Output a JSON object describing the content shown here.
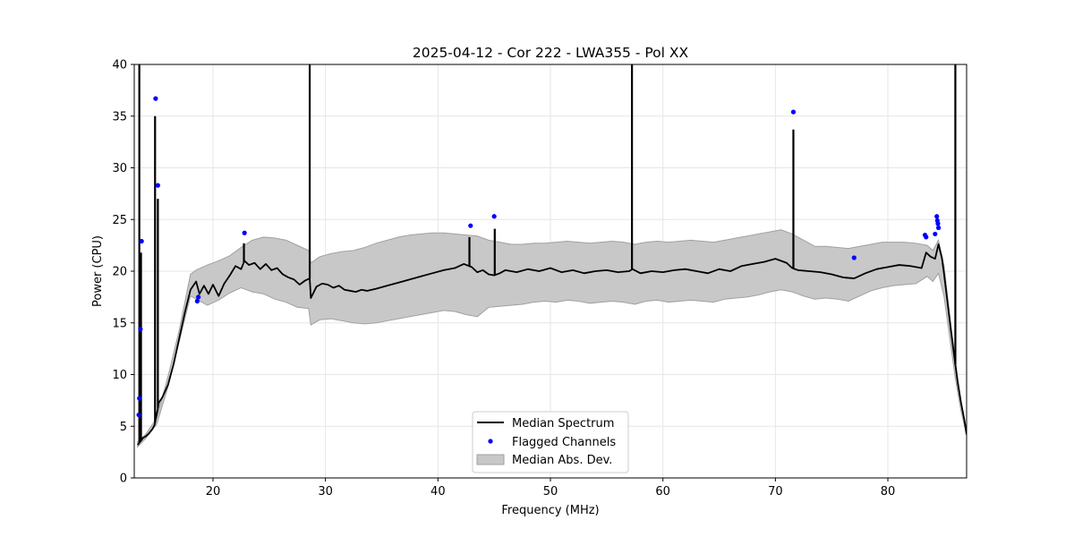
{
  "chart_data": {
    "type": "line",
    "title": "2025-04-12 - Cor 222 - LWA355 - Pol XX",
    "xlabel": "Frequency (MHz)",
    "ylabel": "Power (CPU)",
    "xlim": [
      13.0,
      87.0
    ],
    "ylim": [
      0,
      40
    ],
    "xticks": [
      20,
      30,
      40,
      50,
      60,
      70,
      80
    ],
    "yticks": [
      0,
      5,
      10,
      15,
      20,
      25,
      30,
      35,
      40
    ],
    "grid": true,
    "legend_position": "lower-center",
    "colors": {
      "median": "#000000",
      "flagged": "#0000ff",
      "mad_fill": "#c8c8c8",
      "mad_edge": "#a0a0a0",
      "grid": "#e6e6e6"
    },
    "series": [
      {
        "name": "Median Spectrum",
        "kind": "line",
        "x": [
          13.3,
          13.6,
          13.8,
          14.0,
          14.3,
          14.6,
          14.8,
          15.0,
          15.2,
          15.5,
          16.0,
          16.5,
          17.0,
          17.5,
          18.0,
          18.5,
          18.8,
          19.2,
          19.6,
          20.0,
          20.5,
          21.0,
          21.5,
          22.0,
          22.5,
          22.8,
          23.2,
          23.7,
          24.2,
          24.7,
          25.2,
          25.7,
          26.2,
          26.7,
          27.2,
          27.7,
          28.2,
          28.6,
          28.7,
          29.2,
          29.7,
          30.2,
          30.7,
          31.2,
          31.7,
          32.2,
          32.7,
          33.2,
          33.7,
          34.5,
          35.5,
          36.5,
          37.5,
          38.5,
          39.5,
          40.5,
          41.5,
          42.3,
          43.0,
          43.5,
          44.0,
          44.5,
          45.0,
          45.5,
          46.0,
          47.0,
          48.0,
          49.0,
          50.0,
          51.0,
          52.0,
          53.0,
          54.0,
          55.0,
          56.0,
          57.0,
          57.3,
          58.0,
          59.0,
          60.0,
          61.0,
          62.0,
          63.0,
          64.0,
          65.0,
          66.0,
          67.0,
          68.0,
          69.0,
          70.0,
          71.0,
          71.5,
          72.0,
          73.0,
          74.0,
          75.0,
          76.0,
          77.0,
          78.0,
          79.0,
          80.0,
          81.0,
          82.0,
          83.0,
          83.4,
          83.8,
          84.2,
          84.5,
          84.8,
          85.0,
          85.3,
          85.6,
          85.9,
          86.2,
          86.5,
          86.8,
          87.0
        ],
        "y": [
          3.2,
          3.6,
          3.9,
          4.0,
          4.3,
          4.7,
          5.1,
          6.2,
          7.3,
          7.8,
          9.0,
          11.0,
          13.5,
          16.0,
          18.2,
          19.0,
          17.8,
          18.6,
          17.8,
          18.7,
          17.6,
          18.8,
          19.6,
          20.5,
          20.2,
          21.0,
          20.6,
          20.8,
          20.2,
          20.7,
          20.1,
          20.3,
          19.7,
          19.4,
          19.2,
          18.7,
          19.1,
          19.3,
          17.4,
          18.5,
          18.8,
          18.7,
          18.4,
          18.6,
          18.2,
          18.1,
          18.0,
          18.2,
          18.1,
          18.3,
          18.6,
          18.9,
          19.2,
          19.5,
          19.8,
          20.1,
          20.3,
          20.7,
          20.4,
          19.9,
          20.1,
          19.7,
          19.6,
          19.8,
          20.1,
          19.9,
          20.2,
          20.0,
          20.3,
          19.9,
          20.1,
          19.8,
          20.0,
          20.1,
          19.9,
          20.0,
          20.2,
          19.8,
          20.0,
          19.9,
          20.1,
          20.2,
          20.0,
          19.8,
          20.2,
          20.0,
          20.5,
          20.7,
          20.9,
          21.2,
          20.8,
          20.3,
          20.1,
          20.0,
          19.9,
          19.7,
          19.4,
          19.3,
          19.8,
          20.2,
          20.4,
          20.6,
          20.5,
          20.3,
          21.8,
          21.4,
          21.2,
          22.6,
          21.3,
          19.7,
          17.0,
          14.3,
          11.8,
          9.3,
          7.3,
          5.6,
          4.2
        ]
      },
      {
        "name": "Median Abs. Dev.",
        "kind": "band",
        "x": [
          13.3,
          14.0,
          15.0,
          16.0,
          17.0,
          18.0,
          18.5,
          19.5,
          20.5,
          21.5,
          22.5,
          23.5,
          24.5,
          25.5,
          26.5,
          27.5,
          28.5,
          28.7,
          29.5,
          30.5,
          31.5,
          32.5,
          33.5,
          34.5,
          35.5,
          36.5,
          37.5,
          38.5,
          39.5,
          40.5,
          41.5,
          42.5,
          43.5,
          44.5,
          45.5,
          46.5,
          47.5,
          48.5,
          49.5,
          50.5,
          51.5,
          52.5,
          53.5,
          54.5,
          55.5,
          56.5,
          57.5,
          58.5,
          59.5,
          60.5,
          61.5,
          62.5,
          63.5,
          64.5,
          65.5,
          66.5,
          67.5,
          68.5,
          69.5,
          70.5,
          71.5,
          72.5,
          73.5,
          74.5,
          75.5,
          76.5,
          77.5,
          78.5,
          79.5,
          80.5,
          81.5,
          82.5,
          83.5,
          84.0,
          84.5,
          85.0,
          85.5,
          86.0,
          86.5,
          87.0
        ],
        "lower": [
          3.0,
          3.8,
          5.2,
          8.8,
          13.2,
          17.6,
          17.3,
          16.7,
          17.2,
          17.9,
          18.4,
          18.0,
          17.8,
          17.3,
          17.0,
          16.5,
          16.4,
          14.8,
          15.3,
          15.4,
          15.2,
          15.0,
          14.9,
          15.0,
          15.2,
          15.4,
          15.6,
          15.8,
          16.0,
          16.2,
          16.1,
          15.8,
          15.6,
          16.5,
          16.6,
          16.7,
          16.8,
          17.0,
          17.1,
          17.0,
          17.2,
          17.1,
          16.9,
          17.0,
          17.1,
          17.0,
          16.8,
          17.1,
          17.2,
          17.0,
          17.1,
          17.2,
          17.1,
          17.0,
          17.3,
          17.4,
          17.5,
          17.7,
          18.0,
          18.2,
          18.0,
          17.6,
          17.3,
          17.4,
          17.3,
          17.1,
          17.6,
          18.1,
          18.4,
          18.6,
          18.7,
          18.8,
          19.5,
          19.0,
          19.8,
          17.5,
          13.6,
          9.6,
          6.5,
          4.1
        ],
        "upper": [
          3.5,
          4.2,
          5.8,
          9.8,
          14.3,
          19.7,
          20.1,
          20.6,
          21.0,
          21.5,
          22.3,
          23.0,
          23.3,
          23.2,
          23.0,
          22.5,
          22.0,
          20.8,
          21.4,
          21.7,
          21.9,
          22.0,
          22.3,
          22.7,
          23.0,
          23.3,
          23.5,
          23.6,
          23.7,
          23.7,
          23.6,
          23.5,
          23.4,
          23.0,
          22.8,
          22.6,
          22.6,
          22.7,
          22.7,
          22.8,
          22.9,
          22.8,
          22.7,
          22.8,
          22.9,
          22.8,
          22.6,
          22.8,
          22.9,
          22.8,
          22.9,
          23.0,
          22.9,
          22.8,
          23.0,
          23.2,
          23.4,
          23.6,
          23.8,
          24.0,
          23.6,
          23.0,
          22.4,
          22.4,
          22.3,
          22.2,
          22.4,
          22.6,
          22.8,
          22.8,
          22.8,
          22.7,
          22.5,
          22.0,
          23.0,
          20.5,
          15.8,
          11.3,
          7.4,
          4.4
        ]
      },
      {
        "name": "Flagged Channels",
        "kind": "scatter",
        "x": [
          13.4,
          13.45,
          13.55,
          13.65,
          14.9,
          15.1,
          18.6,
          18.7,
          22.8,
          42.9,
          45.0,
          71.6,
          77.0,
          83.3,
          83.4,
          84.2,
          84.35,
          84.4,
          84.45,
          84.5
        ],
        "y": [
          6.1,
          7.7,
          14.4,
          22.9,
          36.7,
          28.3,
          17.1,
          17.5,
          23.7,
          24.4,
          25.3,
          35.4,
          21.3,
          23.5,
          23.3,
          23.6,
          25.3,
          24.9,
          24.6,
          24.2
        ]
      }
    ],
    "spikes": [
      {
        "x": 13.45,
        "top": 40.0
      },
      {
        "x": 13.6,
        "top": 21.8
      },
      {
        "x": 14.85,
        "top": 35.0
      },
      {
        "x": 15.1,
        "top": 27.0
      },
      {
        "x": 22.75,
        "top": 22.7
      },
      {
        "x": 28.6,
        "top": 40.0
      },
      {
        "x": 42.8,
        "top": 23.3
      },
      {
        "x": 45.05,
        "top": 24.1
      },
      {
        "x": 57.25,
        "top": 40.0
      },
      {
        "x": 71.6,
        "top": 33.7
      },
      {
        "x": 86.0,
        "top": 40.0
      }
    ],
    "legend": [
      {
        "label": "Median Spectrum",
        "marker": "line"
      },
      {
        "label": "Flagged Channels",
        "marker": "dot"
      },
      {
        "label": "Median Abs. Dev.",
        "marker": "patch"
      }
    ]
  }
}
